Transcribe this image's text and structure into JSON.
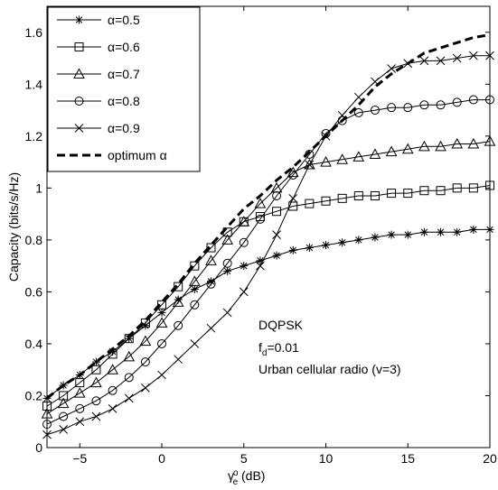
{
  "chart_data": {
    "type": "line",
    "xlabel_main": "γ",
    "xlabel_sub": "e",
    "xlabel_sup": "o",
    "xlabel_rest": " (dB)",
    "ylabel": "Capacity (bits/s/Hz)",
    "xlim": [
      -7,
      20
    ],
    "ylim": [
      0,
      1.7
    ],
    "grid": false,
    "legend_position": "top-left",
    "x_ticks": [
      -5,
      0,
      5,
      10,
      15,
      20
    ],
    "x_tick_labels": [
      "−5",
      "0",
      "5",
      "10",
      "15",
      "20"
    ],
    "y_ticks": [
      0,
      0.2,
      0.4,
      0.6,
      0.8,
      1.0,
      1.2,
      1.4,
      1.6
    ],
    "y_tick_labels": [
      "0",
      "0.2",
      "0.4",
      "0.6",
      "0.8",
      "1",
      "1.2",
      "1.4",
      "1.6"
    ],
    "annotations": [
      {
        "text": "DQPSK"
      },
      {
        "text": "f",
        "sub": "d",
        "rest": "=0.01"
      },
      {
        "text": "Urban cellular radio (v=3)"
      }
    ],
    "x": [
      -7,
      -6,
      -5,
      -4,
      -3,
      -2,
      -1,
      0,
      1,
      2,
      3,
      4,
      5,
      6,
      7,
      8,
      9,
      10,
      11,
      12,
      13,
      14,
      15,
      16,
      17,
      18,
      19,
      20
    ],
    "series": [
      {
        "name": "α=0.5",
        "marker": "star",
        "dash": false,
        "values": [
          0.19,
          0.24,
          0.28,
          0.33,
          0.37,
          0.42,
          0.47,
          0.52,
          0.57,
          0.61,
          0.64,
          0.68,
          0.7,
          0.72,
          0.74,
          0.76,
          0.77,
          0.78,
          0.79,
          0.8,
          0.81,
          0.82,
          0.82,
          0.83,
          0.83,
          0.83,
          0.84,
          0.84
        ]
      },
      {
        "name": "α=0.6",
        "marker": "square",
        "dash": false,
        "values": [
          0.16,
          0.2,
          0.25,
          0.3,
          0.36,
          0.42,
          0.48,
          0.55,
          0.62,
          0.7,
          0.77,
          0.83,
          0.87,
          0.89,
          0.91,
          0.93,
          0.94,
          0.95,
          0.96,
          0.97,
          0.97,
          0.98,
          0.98,
          0.99,
          0.99,
          1.0,
          1.0,
          1.01
        ]
      },
      {
        "name": "α=0.7",
        "marker": "triangle",
        "dash": false,
        "values": [
          0.13,
          0.17,
          0.21,
          0.25,
          0.3,
          0.35,
          0.41,
          0.48,
          0.56,
          0.64,
          0.72,
          0.8,
          0.87,
          0.94,
          1.0,
          1.06,
          1.09,
          1.1,
          1.11,
          1.12,
          1.13,
          1.14,
          1.15,
          1.16,
          1.16,
          1.17,
          1.17,
          1.18
        ]
      },
      {
        "name": "α=0.8",
        "marker": "circle",
        "dash": false,
        "values": [
          0.09,
          0.12,
          0.15,
          0.18,
          0.22,
          0.27,
          0.33,
          0.4,
          0.47,
          0.55,
          0.63,
          0.71,
          0.79,
          0.88,
          0.97,
          1.05,
          1.13,
          1.21,
          1.26,
          1.29,
          1.3,
          1.31,
          1.31,
          1.32,
          1.32,
          1.33,
          1.34,
          1.34
        ]
      },
      {
        "name": "α=0.9",
        "marker": "x",
        "dash": false,
        "values": [
          0.05,
          0.07,
          0.1,
          0.12,
          0.15,
          0.19,
          0.23,
          0.28,
          0.34,
          0.4,
          0.46,
          0.52,
          0.6,
          0.7,
          0.82,
          0.96,
          1.09,
          1.2,
          1.28,
          1.35,
          1.41,
          1.46,
          1.48,
          1.49,
          1.49,
          1.5,
          1.51,
          1.51
        ]
      },
      {
        "name": "optimum α",
        "marker": "none",
        "dash": true,
        "values": [
          0.19,
          0.24,
          0.28,
          0.33,
          0.38,
          0.43,
          0.49,
          0.56,
          0.63,
          0.71,
          0.78,
          0.85,
          0.92,
          0.97,
          1.03,
          1.08,
          1.14,
          1.2,
          1.26,
          1.32,
          1.39,
          1.44,
          1.48,
          1.52,
          1.54,
          1.56,
          1.58,
          1.59
        ]
      }
    ]
  }
}
